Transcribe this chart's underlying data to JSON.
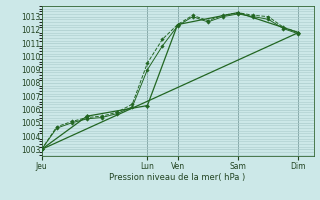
{
  "background_color": "#cce8e8",
  "plot_bg_color": "#cce8e8",
  "grid_color_minor": "#aacccc",
  "grid_color_major_x": "#88aaaa",
  "line_color": "#226622",
  "xlabel_text": "Pression niveau de la mer( hPa )",
  "x_tick_labels": [
    "Jeu",
    "Lun",
    "Ven",
    "Sam",
    "Dim"
  ],
  "x_tick_positions": [
    0,
    42,
    54,
    78,
    102
  ],
  "xlim": [
    0,
    108
  ],
  "ylim": [
    1002.5,
    1013.8
  ],
  "yticks": [
    1003,
    1004,
    1005,
    1006,
    1007,
    1008,
    1009,
    1010,
    1011,
    1012,
    1013
  ],
  "series1_x": [
    0,
    6,
    12,
    18,
    24,
    30,
    36,
    42,
    48,
    54,
    60,
    66,
    72,
    78,
    84,
    90,
    96,
    102
  ],
  "series1_y": [
    1003.0,
    1004.7,
    1005.1,
    1005.4,
    1005.5,
    1005.8,
    1006.4,
    1009.5,
    1011.3,
    1012.4,
    1013.1,
    1012.7,
    1013.1,
    1013.3,
    1013.1,
    1013.0,
    1012.2,
    1011.8
  ],
  "series2_x": [
    0,
    6,
    12,
    18,
    24,
    30,
    36,
    42,
    48,
    54,
    60,
    66,
    72,
    78,
    84,
    90,
    96,
    102
  ],
  "series2_y": [
    1003.0,
    1004.6,
    1005.0,
    1005.3,
    1005.4,
    1005.7,
    1006.2,
    1009.0,
    1010.8,
    1012.3,
    1013.0,
    1012.6,
    1013.0,
    1013.2,
    1013.0,
    1012.8,
    1012.1,
    1011.7
  ],
  "series3_x": [
    0,
    18,
    42,
    54,
    78,
    102
  ],
  "series3_y": [
    1003.0,
    1005.5,
    1006.3,
    1012.4,
    1013.3,
    1011.8
  ],
  "series4_x": [
    0,
    102
  ],
  "series4_y": [
    1003.0,
    1011.8
  ],
  "vline_x": [
    42,
    54,
    78,
    102
  ],
  "minor_ytick_count": 5
}
